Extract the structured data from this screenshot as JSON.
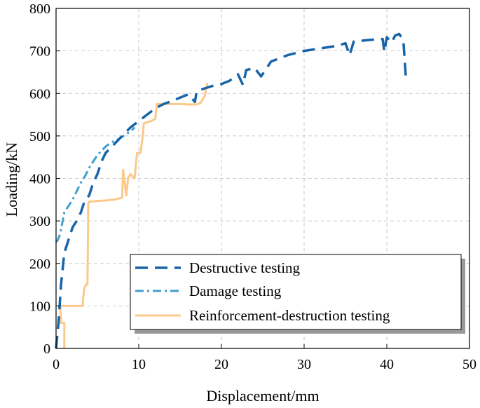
{
  "chart_data": {
    "type": "line",
    "title": "",
    "xlabel": "Displacement/mm",
    "ylabel": "Loading/kN",
    "xlim": [
      0,
      50
    ],
    "ylim": [
      0,
      800
    ],
    "xticks": [
      0,
      10,
      20,
      30,
      40,
      50
    ],
    "yticks": [
      0,
      100,
      200,
      300,
      400,
      500,
      600,
      700,
      800
    ],
    "xtick_labels": [
      "0",
      "10",
      "20",
      "30",
      "40",
      "50"
    ],
    "ytick_labels": [
      "0",
      "100",
      "200",
      "300",
      "400",
      "500",
      "600",
      "700",
      "800"
    ],
    "grid": true,
    "legend_position": "lower-right",
    "series": [
      {
        "name": "Destructive testing",
        "color": "#1864a8",
        "dash": "long-dash",
        "x": [
          0,
          0.3,
          0.6,
          1.0,
          1.5,
          2.0,
          2.5,
          3.0,
          3.5,
          4.0,
          4.5,
          5.0,
          5.5,
          6.0,
          6.5,
          7.0,
          8.0,
          9.0,
          10.0,
          11.0,
          12.0,
          13.0,
          14.0,
          15.0,
          16.0,
          16.8,
          17.0,
          18.0,
          19.0,
          20.0,
          21.0,
          22.0,
          22.6,
          23.0,
          24.0,
          24.8,
          26.0,
          28.0,
          30.0,
          32.0,
          34.0,
          35.0,
          35.5,
          36.0,
          38.0,
          39.5,
          39.7,
          40.0,
          40.6,
          41.0,
          41.5,
          42.0,
          42.3
        ],
        "y": [
          0,
          60,
          150,
          225,
          255,
          285,
          300,
          320,
          350,
          360,
          390,
          410,
          440,
          460,
          470,
          480,
          500,
          520,
          535,
          550,
          565,
          575,
          582,
          590,
          598,
          580,
          605,
          612,
          618,
          622,
          630,
          645,
          620,
          655,
          660,
          640,
          675,
          690,
          700,
          706,
          712,
          718,
          690,
          722,
          726,
          728,
          698,
          732,
          720,
          736,
          740,
          725,
          640
        ]
      },
      {
        "name": "Damage testing",
        "color": "#3fa0cf",
        "dash": "dash-dot",
        "x": [
          0,
          0.2,
          0.5,
          1.0,
          1.5,
          2.0,
          2.5,
          3.0,
          3.5,
          4.0,
          4.5,
          5.0,
          5.5,
          6.0,
          6.5,
          7.0,
          7.5,
          8.0,
          8.5,
          9.0,
          9.5
        ],
        "y": [
          250,
          255,
          270,
          320,
          335,
          350,
          370,
          390,
          405,
          425,
          440,
          455,
          465,
          475,
          482,
          488,
          492,
          498,
          505,
          510,
          520
        ]
      },
      {
        "name": "Reinforcement-destruction testing",
        "color": "#fbc98a",
        "dash": "solid",
        "x": [
          1.0,
          1.0,
          0.6,
          0.5,
          0.6,
          1.5,
          3.2,
          3.4,
          3.6,
          3.8,
          3.9,
          4.0,
          5.0,
          6.0,
          7.0,
          7.5,
          8.0,
          8.1,
          8.5,
          8.7,
          9.0,
          9.5,
          9.8,
          10.2,
          10.5,
          10.6,
          11.0,
          11.5,
          12.0,
          12.2,
          13.0,
          14.0,
          15.0,
          16.0,
          17.0,
          17.5,
          18.0,
          18.3
        ],
        "y": [
          0,
          60,
          60,
          100,
          100,
          100,
          100,
          140,
          150,
          150,
          340,
          345,
          347,
          348,
          350,
          352,
          355,
          420,
          360,
          400,
          410,
          400,
          460,
          460,
          500,
          530,
          532,
          535,
          540,
          575,
          575,
          575,
          575,
          574,
          574,
          578,
          595,
          625
        ]
      }
    ]
  }
}
